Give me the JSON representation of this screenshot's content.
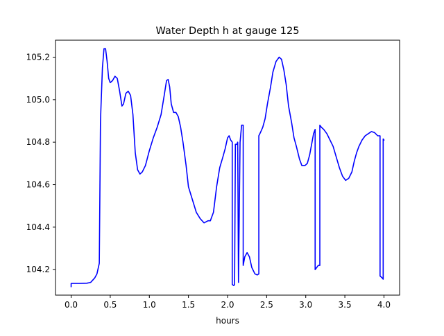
{
  "chart_data": {
    "type": "line",
    "title": "Water Depth h at gauge 125",
    "xlabel": "hours",
    "ylabel": "",
    "xlim": [
      -0.2,
      4.2
    ],
    "ylim": [
      104.08,
      105.28
    ],
    "grid": false,
    "x_ticks": [
      0.0,
      0.5,
      1.0,
      1.5,
      2.0,
      2.5,
      3.0,
      3.5,
      4.0
    ],
    "x_tick_labels": [
      "0.0",
      "0.5",
      "1.0",
      "1.5",
      "2.0",
      "2.5",
      "3.0",
      "3.5",
      "4.0"
    ],
    "y_ticks": [
      104.2,
      104.4,
      104.6,
      104.8,
      105.0,
      105.2
    ],
    "y_tick_labels": [
      "104.2",
      "104.4",
      "104.6",
      "104.8",
      "105.0",
      "105.2"
    ],
    "series": [
      {
        "color": "#0000ff",
        "x": [
          0.0,
          0.0,
          0.02,
          0.1,
          0.2,
          0.25,
          0.3,
          0.33,
          0.36,
          0.375,
          0.38,
          0.4,
          0.42,
          0.44,
          0.46,
          0.48,
          0.5,
          0.53,
          0.56,
          0.59,
          0.62,
          0.65,
          0.67,
          0.7,
          0.73,
          0.76,
          0.79,
          0.82,
          0.85,
          0.88,
          0.91,
          0.95,
          1.0,
          1.05,
          1.1,
          1.15,
          1.19,
          1.22,
          1.24,
          1.26,
          1.28,
          1.31,
          1.34,
          1.37,
          1.4,
          1.43,
          1.47,
          1.5,
          1.55,
          1.6,
          1.65,
          1.7,
          1.75,
          1.78,
          1.82,
          1.86,
          1.9,
          1.94,
          1.97,
          2.0,
          2.02,
          2.04,
          2.06,
          2.06,
          2.08,
          2.09,
          2.1,
          2.1,
          2.12,
          2.13,
          2.14,
          2.14,
          2.16,
          2.17,
          2.18,
          2.2,
          2.2,
          2.22,
          2.25,
          2.28,
          2.31,
          2.35,
          2.38,
          2.4,
          2.4,
          2.42,
          2.45,
          2.48,
          2.51,
          2.55,
          2.58,
          2.62,
          2.66,
          2.69,
          2.72,
          2.75,
          2.78,
          2.82,
          2.85,
          2.88,
          2.92,
          2.95,
          2.99,
          3.02,
          3.05,
          3.08,
          3.1,
          3.12,
          3.12,
          3.14,
          3.16,
          3.18,
          3.18,
          3.2,
          3.23,
          3.27,
          3.31,
          3.35,
          3.39,
          3.43,
          3.47,
          3.51,
          3.55,
          3.59,
          3.62,
          3.65,
          3.68,
          3.72,
          3.76,
          3.8,
          3.84,
          3.88,
          3.92,
          3.95,
          3.95,
          3.98,
          3.99,
          3.99,
          4.0
        ],
        "y": [
          104.12,
          104.135,
          104.135,
          104.135,
          104.136,
          104.14,
          104.16,
          104.18,
          104.23,
          104.89,
          104.95,
          105.15,
          105.24,
          105.24,
          105.18,
          105.1,
          105.08,
          105.09,
          105.11,
          105.1,
          105.04,
          104.97,
          104.98,
          105.03,
          105.04,
          105.02,
          104.93,
          104.75,
          104.67,
          104.65,
          104.66,
          104.69,
          104.76,
          104.82,
          104.87,
          104.93,
          105.02,
          105.09,
          105.095,
          105.06,
          104.98,
          104.94,
          104.94,
          104.92,
          104.87,
          104.8,
          104.69,
          104.59,
          104.53,
          104.47,
          104.44,
          104.42,
          104.43,
          104.43,
          104.47,
          104.59,
          104.68,
          104.73,
          104.77,
          104.82,
          104.83,
          104.81,
          104.8,
          104.13,
          104.125,
          104.13,
          104.78,
          104.79,
          104.79,
          104.8,
          104.14,
          104.15,
          104.8,
          104.84,
          104.88,
          104.88,
          104.22,
          104.26,
          104.28,
          104.26,
          104.21,
          104.18,
          104.175,
          104.18,
          104.83,
          104.845,
          104.87,
          104.91,
          104.98,
          105.06,
          105.13,
          105.18,
          105.2,
          105.19,
          105.14,
          105.07,
          104.97,
          104.89,
          104.82,
          104.78,
          104.72,
          104.69,
          104.69,
          104.7,
          104.74,
          104.8,
          104.84,
          104.86,
          104.2,
          104.21,
          104.22,
          104.22,
          104.88,
          104.87,
          104.86,
          104.84,
          104.81,
          104.78,
          104.73,
          104.68,
          104.64,
          104.62,
          104.63,
          104.66,
          104.71,
          104.75,
          104.78,
          104.81,
          104.83,
          104.84,
          104.85,
          104.845,
          104.83,
          104.83,
          104.17,
          104.16,
          104.155,
          104.815,
          104.81
        ]
      }
    ]
  }
}
